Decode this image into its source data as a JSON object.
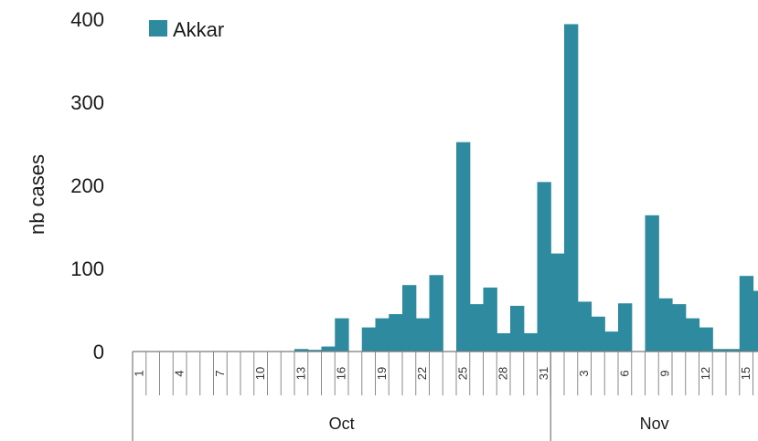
{
  "chart_data": {
    "type": "bar",
    "ylabel": "nb cases",
    "ylim": [
      0,
      400
    ],
    "yticks": [
      0,
      100,
      200,
      300,
      400
    ],
    "grid": false,
    "legend_position": "top-left",
    "colors": {
      "bar": "#2e8a9f"
    },
    "x_tick_labels": [
      {
        "index": 0,
        "label": "1"
      },
      {
        "index": 3,
        "label": "4"
      },
      {
        "index": 6,
        "label": "7"
      },
      {
        "index": 9,
        "label": "10"
      },
      {
        "index": 12,
        "label": "13"
      },
      {
        "index": 15,
        "label": "16"
      },
      {
        "index": 18,
        "label": "19"
      },
      {
        "index": 21,
        "label": "22"
      },
      {
        "index": 24,
        "label": "25"
      },
      {
        "index": 27,
        "label": "28"
      },
      {
        "index": 30,
        "label": "31"
      },
      {
        "index": 33,
        "label": "3"
      },
      {
        "index": 36,
        "label": "6"
      },
      {
        "index": 39,
        "label": "9"
      },
      {
        "index": 42,
        "label": "12"
      },
      {
        "index": 45,
        "label": "15"
      }
    ],
    "month_groups": [
      {
        "label": "Oct",
        "start": 0,
        "end": 30
      },
      {
        "label": "Nov",
        "start": 31,
        "end": 46
      }
    ],
    "series": [
      {
        "name": "Akkar",
        "values": [
          0,
          0,
          0,
          0,
          0,
          0,
          0,
          0,
          0,
          0,
          0,
          0,
          3,
          2,
          6,
          40,
          0,
          29,
          40,
          45,
          80,
          40,
          92,
          0,
          252,
          57,
          77,
          22,
          55,
          22,
          204,
          118,
          394,
          60,
          42,
          24,
          58,
          0,
          164,
          64,
          57,
          40,
          29,
          3,
          3,
          91,
          73
        ]
      }
    ]
  }
}
